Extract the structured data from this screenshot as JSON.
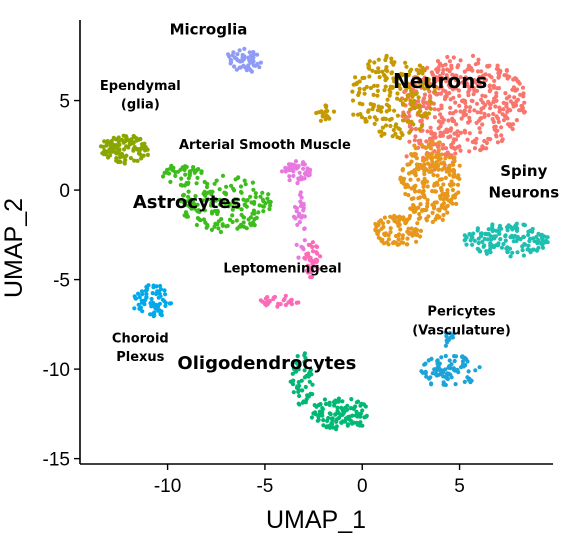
{
  "chart_data": {
    "type": "scatter",
    "title": "",
    "xlabel": "UMAP_1",
    "ylabel": "UMAP_2",
    "xlim": [
      -14.5,
      9.8
    ],
    "ylim": [
      -15.3,
      9.5
    ],
    "x_ticks": [
      -10,
      -5,
      0,
      5
    ],
    "y_ticks": [
      -15,
      -10,
      -5,
      0,
      5
    ],
    "grid": false,
    "legend": "none",
    "clusters": [
      {
        "label": "Neurons",
        "color": "#F8766D",
        "label_at": [
          4.0,
          5.7
        ],
        "label_size": 20,
        "blobs": [
          {
            "cx": 5.2,
            "cy": 4.8,
            "rx": 3.2,
            "ry": 2.7,
            "n": 420
          },
          {
            "cx": 3.6,
            "cy": 2.2,
            "rx": 1.4,
            "ry": 1.1,
            "n": 60
          }
        ]
      },
      {
        "label": "",
        "color": "#C59900",
        "label_at": null,
        "label_size": 0,
        "blobs": [
          {
            "cx": 1.6,
            "cy": 5.2,
            "rx": 2.2,
            "ry": 2.3,
            "n": 200
          },
          {
            "cx": -1.9,
            "cy": 4.3,
            "rx": 0.5,
            "ry": 0.5,
            "n": 18
          }
        ]
      },
      {
        "label": "",
        "color": "#E7971A",
        "label_at": null,
        "label_size": 0,
        "blobs": [
          {
            "cx": 3.5,
            "cy": 0.5,
            "rx": 1.6,
            "ry": 2.3,
            "n": 240
          },
          {
            "cx": 1.8,
            "cy": -2.3,
            "rx": 1.3,
            "ry": 0.9,
            "n": 90
          }
        ]
      },
      {
        "label": "Spiny Neurons",
        "color": "#1EBFB0",
        "label_at": [
          8.3,
          0.8
        ],
        "label_size": 15,
        "blobs": [
          {
            "cx": 7.4,
            "cy": -2.8,
            "rx": 2.2,
            "ry": 0.9,
            "n": 150
          }
        ]
      },
      {
        "label": "Microglia",
        "color": "#8E9CF5",
        "label_at": [
          -7.9,
          8.7
        ],
        "label_size": 15,
        "blobs": [
          {
            "cx": -6.1,
            "cy": 7.2,
            "rx": 0.9,
            "ry": 0.7,
            "n": 55
          }
        ]
      },
      {
        "label": "Ependymal (glia)",
        "color": "#89A600",
        "label_at": [
          -11.4,
          5.6
        ],
        "label_size": 13,
        "blobs": [
          {
            "cx": -12.2,
            "cy": 2.3,
            "rx": 1.2,
            "ry": 0.8,
            "n": 110
          }
        ]
      },
      {
        "label": "Astrocytes",
        "color": "#3DBD1C",
        "label_at": [
          -9.0,
          -1.0
        ],
        "label_size": 18,
        "blobs": [
          {
            "cx": -7.0,
            "cy": -0.8,
            "rx": 2.4,
            "ry": 1.6,
            "n": 170
          },
          {
            "cx": -9.3,
            "cy": 0.8,
            "rx": 1.2,
            "ry": 0.6,
            "n": 40
          }
        ]
      },
      {
        "label": "Arterial Smooth Muscle",
        "color": "#E879E0",
        "label_at": [
          -5.0,
          2.3
        ],
        "label_size": 13,
        "blobs": [
          {
            "cx": -3.4,
            "cy": 1.0,
            "rx": 0.8,
            "ry": 0.6,
            "n": 50
          },
          {
            "cx": -3.2,
            "cy": -2.0,
            "rx": 0.3,
            "ry": 2.0,
            "n": 30
          }
        ]
      },
      {
        "label": "Leptomeningeal",
        "color": "#FC6AB8",
        "label_at": [
          -4.1,
          -4.6
        ],
        "label_size": 13,
        "blobs": [
          {
            "cx": -2.6,
            "cy": -3.9,
            "rx": 0.45,
            "ry": 1.0,
            "n": 45
          },
          {
            "cx": -4.2,
            "cy": -6.2,
            "rx": 1.0,
            "ry": 0.3,
            "n": 30
          }
        ]
      },
      {
        "label": "Choroid Plexus",
        "color": "#00A9E9",
        "label_at": [
          -11.4,
          -8.5
        ],
        "label_size": 13,
        "blobs": [
          {
            "cx": -10.8,
            "cy": -6.2,
            "rx": 1.0,
            "ry": 0.9,
            "n": 70
          }
        ]
      },
      {
        "label": "Oligodendrocytes",
        "color": "#00B774",
        "label_at": [
          -4.9,
          -10.0
        ],
        "label_size": 18,
        "blobs": [
          {
            "cx": -1.1,
            "cy": -12.5,
            "rx": 1.5,
            "ry": 0.9,
            "n": 110
          },
          {
            "cx": -3.1,
            "cy": -10.5,
            "rx": 0.6,
            "ry": 1.6,
            "n": 50
          }
        ]
      },
      {
        "label": "Pericytes (Vasculature)",
        "color": "#1CA3D9",
        "label_at": [
          5.1,
          -7.0
        ],
        "label_size": 13,
        "blobs": [
          {
            "cx": 4.5,
            "cy": -10.1,
            "rx": 1.6,
            "ry": 0.9,
            "n": 80
          },
          {
            "cx": 4.4,
            "cy": -8.3,
            "rx": 0.3,
            "ry": 0.5,
            "n": 12
          }
        ]
      }
    ]
  }
}
